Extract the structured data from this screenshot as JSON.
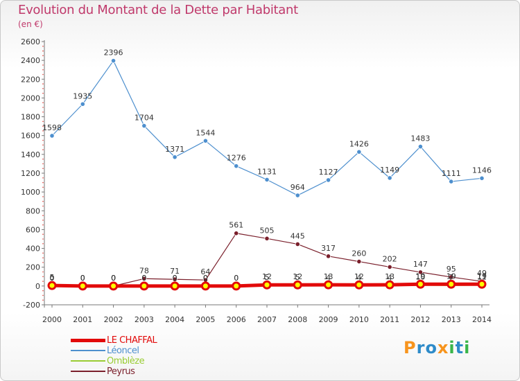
{
  "page": {
    "title": "Evolution du Montant de la Dette par Habitant",
    "unit": "(en €)",
    "brand": "Proxiti"
  },
  "chart_data": {
    "type": "line",
    "title": "Evolution du Montant de la Dette par Habitant",
    "subtitle": "(en €)",
    "x": [
      "2000",
      "2001",
      "2002",
      "2003",
      "2004",
      "2005",
      "2006",
      "2007",
      "2008",
      "2009",
      "2010",
      "2011",
      "2012",
      "2013",
      "2014"
    ],
    "ylim": [
      -200,
      2600
    ],
    "yticks": [
      -200,
      0,
      200,
      400,
      600,
      800,
      1000,
      1200,
      1400,
      1600,
      1800,
      2000,
      2200,
      2400,
      2600
    ],
    "grid": false,
    "legend_position": "bottom-left",
    "series": [
      {
        "name": "LE CHAFFAL",
        "color": "#e20a0a",
        "values": [
          5,
          0,
          0,
          0,
          0,
          0,
          0,
          12,
          12,
          13,
          12,
          13,
          19,
          19,
          19
        ],
        "labels": [
          "5",
          "0",
          "0",
          "0",
          "0",
          "0",
          "0",
          "12",
          "12",
          "13",
          "12",
          "13",
          "19",
          "19",
          "19"
        ]
      },
      {
        "name": "Léoncel",
        "color": "#4d8fce",
        "values": [
          1598,
          1935,
          2396,
          1704,
          1371,
          1544,
          1276,
          1131,
          964,
          1127,
          1426,
          1149,
          1483,
          1111,
          1146
        ],
        "labels": [
          "1598",
          "1935",
          "2396",
          "1704",
          "1371",
          "1544",
          "1276",
          "1131",
          "964",
          "1127",
          "1426",
          "1149",
          "1483",
          "1111",
          "1146"
        ]
      },
      {
        "name": "Omblèze",
        "color": "#99cc33",
        "values": [
          0,
          0,
          0,
          0,
          0,
          0,
          0,
          5,
          5,
          4,
          4,
          4,
          10,
          7,
          11
        ],
        "labels": [
          "0",
          "0",
          "0",
          "0",
          "0",
          "0",
          "0",
          "5",
          "5",
          "4",
          "4",
          "4",
          "10",
          "7",
          "11"
        ]
      },
      {
        "name": "Peyrus",
        "color": "#7a1f2b",
        "values": [
          0,
          0,
          0,
          78,
          71,
          64,
          561,
          505,
          445,
          317,
          260,
          202,
          147,
          95,
          49
        ],
        "labels": [
          "0",
          "0",
          "0",
          "78",
          "71",
          "64",
          "561",
          "505",
          "445",
          "317",
          "260",
          "202",
          "147",
          "95",
          "49"
        ]
      }
    ]
  }
}
